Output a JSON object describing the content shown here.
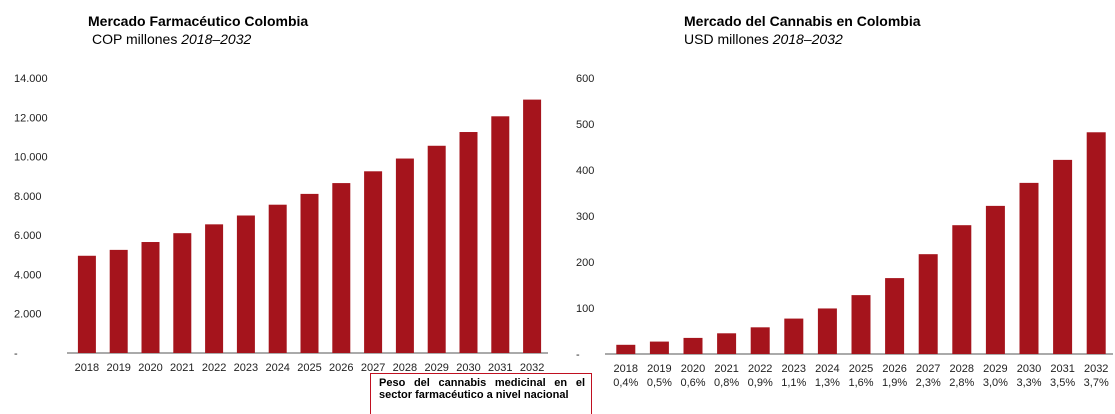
{
  "colors": {
    "bar": "#a5141c",
    "axis": "#555555",
    "note_border": "#c01020"
  },
  "chart_data": [
    {
      "type": "bar",
      "title": "Mercado Farmacéutico Colombia",
      "subtitle_unit": "COP millones",
      "subtitle_period": "2018–2032",
      "categories": [
        "2018",
        "2019",
        "2020",
        "2021",
        "2022",
        "2023",
        "2024",
        "2025",
        "2026",
        "2027",
        "2028",
        "2029",
        "2030",
        "2031",
        "2032"
      ],
      "values": [
        4950,
        5250,
        5650,
        6100,
        6550,
        7000,
        7550,
        8100,
        8650,
        9250,
        9900,
        10550,
        11250,
        12050,
        12900
      ],
      "ylim": [
        0,
        14000
      ],
      "yticks": [
        0,
        2000,
        4000,
        6000,
        8000,
        10000,
        12000,
        14000
      ],
      "ytick_labels": [
        "-",
        "2.000",
        "4.000",
        "6.000",
        "8.000",
        "10.000",
        "12.000",
        "14.000"
      ],
      "grid": false
    },
    {
      "type": "bar",
      "title": "Mercado del Cannabis en Colombia",
      "subtitle_unit": "USD millones",
      "subtitle_period": "2018–2032",
      "categories": [
        "2018",
        "2019",
        "2020",
        "2021",
        "2022",
        "2023",
        "2024",
        "2025",
        "2026",
        "2027",
        "2028",
        "2029",
        "2030",
        "2031",
        "2032"
      ],
      "values": [
        20,
        27,
        35,
        45,
        58,
        77,
        99,
        128,
        165,
        217,
        280,
        322,
        372,
        422,
        482
      ],
      "ylim": [
        0,
        600
      ],
      "yticks": [
        0,
        100,
        200,
        300,
        400,
        500,
        600
      ],
      "ytick_labels": [
        "-",
        "100",
        "200",
        "300",
        "400",
        "500",
        "600"
      ],
      "shares": [
        "0,4%",
        "0,5%",
        "0,6%",
        "0,8%",
        "0,9%",
        "1,1%",
        "1,3%",
        "1,6%",
        "1,9%",
        "2,3%",
        "2,8%",
        "3,0%",
        "3,3%",
        "3,5%",
        "3,7%"
      ],
      "grid": false
    }
  ],
  "note": "Peso del cannabis medicinal en el sector farmacéutico a nivel nacional"
}
